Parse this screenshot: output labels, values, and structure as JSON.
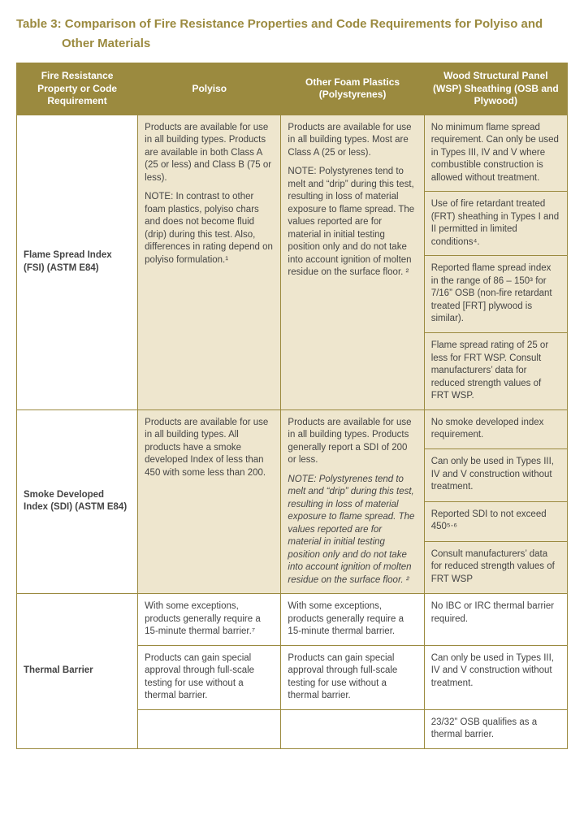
{
  "title_line1": "Table 3: Comparison of Fire Resistance Properties and Code Requirements for Polyiso and",
  "title_line2": "Other Materials",
  "colors": {
    "accent": "#9b8a3f",
    "alt_row_bg": "#eee6ce",
    "text": "#444444",
    "white": "#ffffff"
  },
  "headers": {
    "c1": "Fire Resistance Property or Code Requirement",
    "c2": "Polyiso",
    "c3": "Other Foam Plastics (Polystyrenes)",
    "c4": "Wood Structural Panel (WSP) Sheathing (OSB and Plywood)"
  },
  "rows": {
    "fsi": {
      "label": "Flame Spread Index (FSI) (ASTM E84)",
      "polyiso_p1": "Products are available for use in all building types. Products are available in both Class A (25 or less) and Class B (75 or less).",
      "polyiso_note": "NOTE: In contrast to other foam plastics, polyiso chars and does not become fluid (drip) during this test. Also, differences in rating depend on polyiso formulation.¹",
      "other_p1": "Products are available for use in all building types. Most are Class A (25 or less).",
      "other_note": "NOTE: Polystyrenes tend to melt and “drip” during this test, resulting in loss of material exposure to flame spread. The values reported are for material in initial testing position only and do not take into account ignition of molten residue on the surface floor. ²",
      "wsp_1": "No minimum flame spread requirement. Can only be used in Types III, IV and V where combustible construction is allowed without treatment.",
      "wsp_2": "Use of fire retardant treated (FRT) sheathing in Types I and II permitted in limited conditions⁴.",
      "wsp_3": "Reported flame spread index in the range of 86 – 150³ for 7/16” OSB (non-fire retardant treated [FRT] plywood is similar).",
      "wsp_4": "Flame spread rating of 25 or less for FRT WSP. Consult manufacturers’ data for reduced strength values of FRT WSP."
    },
    "sdi": {
      "label": "Smoke Developed Index (SDI) (ASTM E84)",
      "polyiso": "Products are available for use in all building types. All products have a smoke developed Index of less than 450 with some less than 200.",
      "other_p1": "Products are available for use in all building types. Products generally report a SDI of 200 or less.",
      "other_note": "NOTE: Polystyrenes tend to melt and “drip” during this test, resulting in loss of material exposure to flame spread. The values reported are for material in initial testing position only and do not take into account ignition of molten residue on the surface floor. ²",
      "wsp_1": "No smoke developed index requirement.",
      "wsp_2": "Can only be used in Types III, IV and V construction without treatment.",
      "wsp_3": "Reported SDI to not exceed 450⁵‧⁶",
      "wsp_4": "Consult manufacturers’ data for reduced strength values of FRT WSP"
    },
    "tb": {
      "label": "Thermal Barrier",
      "polyiso_1": "With some exceptions, products generally require a 15-minute thermal barrier.⁷",
      "polyiso_2": "Products can gain special approval through full-scale testing for use without a thermal barrier.",
      "other_1": "With some exceptions, products generally require a 15-minute thermal barrier.",
      "other_2": "Products can gain special approval through full-scale testing for use without a thermal barrier.",
      "wsp_1": "No IBC or IRC thermal barrier required.",
      "wsp_2": "Can only be used in Types III, IV and V construction without treatment.",
      "wsp_3": "23/32” OSB qualifies as a thermal barrier."
    }
  }
}
